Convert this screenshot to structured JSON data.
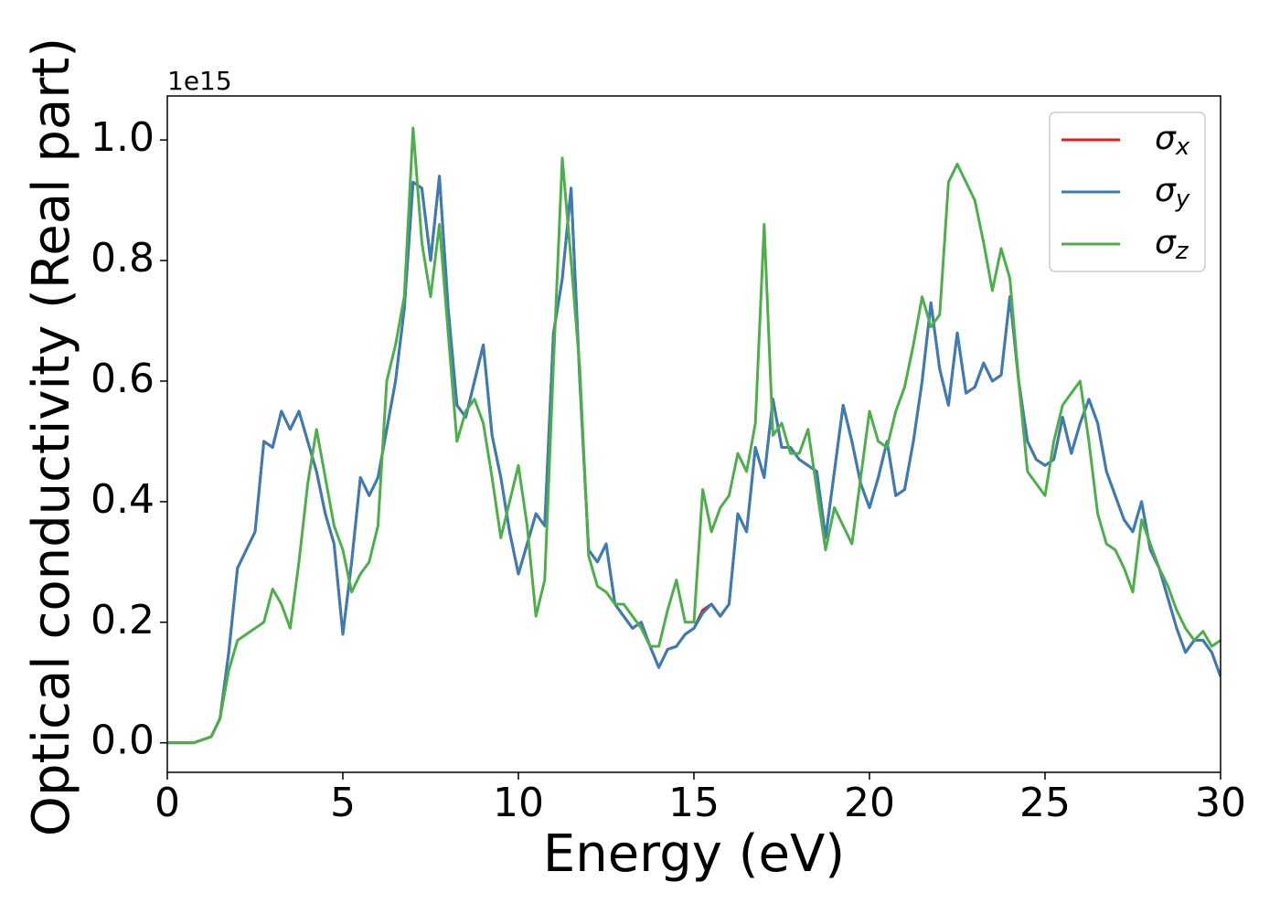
{
  "chart_data": {
    "type": "line",
    "offset_text": "1e15",
    "xlabel": "Energy (eV)",
    "ylabel": "Optical conductivity (Real part)",
    "xlim": [
      0,
      30
    ],
    "xticks": [
      0,
      5,
      10,
      15,
      20,
      25,
      30
    ],
    "ylim": [
      -0.049,
      1.073
    ],
    "yticks": [
      {
        "value": 0,
        "label": "0.0"
      },
      0.2,
      0.4,
      0.6,
      0.8,
      {
        "value": 1,
        "label": "1.0"
      }
    ],
    "legend": "upper right",
    "x": [
      0,
      0.25,
      0.5,
      0.75,
      1,
      1.25,
      1.5,
      1.75,
      2,
      2.25,
      2.5,
      2.75,
      3,
      3.25,
      3.5,
      3.75,
      4,
      4.25,
      4.5,
      4.75,
      5,
      5.25,
      5.5,
      5.75,
      6,
      6.25,
      6.5,
      6.75,
      7,
      7.25,
      7.5,
      7.75,
      8,
      8.25,
      8.5,
      8.75,
      9,
      9.25,
      9.5,
      9.75,
      10,
      10.25,
      10.5,
      10.75,
      11,
      11.25,
      11.5,
      11.75,
      12,
      12.25,
      12.5,
      12.75,
      13,
      13.25,
      13.5,
      13.75,
      14,
      14.25,
      14.5,
      14.75,
      15,
      15.25,
      15.5,
      15.75,
      16,
      16.25,
      16.5,
      16.75,
      17,
      17.25,
      17.5,
      17.75,
      18,
      18.25,
      18.5,
      18.75,
      19,
      19.25,
      19.5,
      19.75,
      20,
      20.25,
      20.5,
      20.75,
      21,
      21.25,
      21.5,
      21.75,
      22,
      22.25,
      22.5,
      22.75,
      23,
      23.25,
      23.5,
      23.75,
      24,
      24.25,
      24.5,
      24.75,
      25,
      25.25,
      25.5,
      25.75,
      26,
      26.25,
      26.5,
      26.75,
      27,
      27.25,
      27.5,
      27.75,
      28,
      28.25,
      28.5,
      28.75,
      29,
      29.25,
      29.5,
      29.75,
      30
    ],
    "series": [
      {
        "name": "σx",
        "color": "#e41a1c",
        "values": [
          0,
          0,
          0,
          0,
          0.005,
          0.01,
          0.04,
          0.15,
          0.29,
          0.32,
          0.35,
          0.5,
          0.49,
          0.55,
          0.52,
          0.55,
          0.5,
          0.45,
          0.38,
          0.33,
          0.18,
          0.3,
          0.44,
          0.41,
          0.44,
          0.52,
          0.6,
          0.72,
          0.93,
          0.92,
          0.8,
          0.94,
          0.72,
          0.56,
          0.54,
          0.6,
          0.66,
          0.51,
          0.44,
          0.35,
          0.28,
          0.33,
          0.38,
          0.36,
          0.68,
          0.77,
          0.92,
          0.6,
          0.32,
          0.3,
          0.33,
          0.23,
          0.21,
          0.19,
          0.2,
          0.16,
          0.125,
          0.155,
          0.16,
          0.18,
          0.19,
          0.22,
          0.23,
          0.21,
          0.23,
          0.38,
          0.35,
          0.49,
          0.44,
          0.57,
          0.49,
          0.49,
          0.47,
          0.46,
          0.45,
          0.34,
          0.45,
          0.56,
          0.5,
          0.43,
          0.39,
          0.44,
          0.5,
          0.41,
          0.42,
          0.5,
          0.6,
          0.73,
          0.62,
          0.56,
          0.68,
          0.58,
          0.59,
          0.63,
          0.6,
          0.61,
          0.74,
          0.6,
          0.5,
          0.47,
          0.46,
          0.47,
          0.54,
          0.48,
          0.53,
          0.57,
          0.53,
          0.45,
          0.41,
          0.37,
          0.35,
          0.4,
          0.32,
          0.29,
          0.24,
          0.19,
          0.15,
          0.17,
          0.17,
          0.15,
          0.11
        ]
      },
      {
        "name": "σy",
        "color": "#377eb8",
        "values": [
          0,
          0,
          0,
          0,
          0.005,
          0.01,
          0.04,
          0.15,
          0.29,
          0.32,
          0.35,
          0.5,
          0.49,
          0.55,
          0.52,
          0.55,
          0.5,
          0.45,
          0.38,
          0.33,
          0.18,
          0.3,
          0.44,
          0.41,
          0.44,
          0.52,
          0.6,
          0.72,
          0.93,
          0.92,
          0.8,
          0.94,
          0.72,
          0.56,
          0.54,
          0.6,
          0.66,
          0.51,
          0.44,
          0.35,
          0.28,
          0.33,
          0.38,
          0.36,
          0.68,
          0.77,
          0.92,
          0.6,
          0.32,
          0.3,
          0.33,
          0.23,
          0.21,
          0.19,
          0.2,
          0.16,
          0.125,
          0.155,
          0.16,
          0.18,
          0.19,
          0.215,
          0.23,
          0.21,
          0.23,
          0.38,
          0.35,
          0.49,
          0.44,
          0.57,
          0.49,
          0.49,
          0.47,
          0.46,
          0.45,
          0.34,
          0.45,
          0.56,
          0.5,
          0.43,
          0.39,
          0.44,
          0.5,
          0.41,
          0.42,
          0.5,
          0.6,
          0.73,
          0.62,
          0.56,
          0.68,
          0.58,
          0.59,
          0.63,
          0.6,
          0.61,
          0.74,
          0.6,
          0.5,
          0.47,
          0.46,
          0.47,
          0.54,
          0.48,
          0.53,
          0.57,
          0.53,
          0.45,
          0.41,
          0.37,
          0.35,
          0.4,
          0.32,
          0.29,
          0.24,
          0.19,
          0.15,
          0.17,
          0.17,
          0.15,
          0.11
        ]
      },
      {
        "name": "σz",
        "color": "#4daf4a",
        "values": [
          0,
          0,
          0,
          0,
          0.005,
          0.01,
          0.04,
          0.12,
          0.17,
          0.18,
          0.19,
          0.2,
          0.255,
          0.23,
          0.19,
          0.3,
          0.43,
          0.52,
          0.44,
          0.36,
          0.32,
          0.25,
          0.28,
          0.3,
          0.36,
          0.6,
          0.66,
          0.74,
          1.02,
          0.83,
          0.74,
          0.86,
          0.68,
          0.5,
          0.55,
          0.57,
          0.53,
          0.44,
          0.34,
          0.4,
          0.46,
          0.36,
          0.21,
          0.27,
          0.63,
          0.97,
          0.8,
          0.62,
          0.31,
          0.26,
          0.25,
          0.23,
          0.23,
          0.21,
          0.19,
          0.16,
          0.16,
          0.22,
          0.27,
          0.2,
          0.2,
          0.42,
          0.35,
          0.39,
          0.41,
          0.48,
          0.45,
          0.53,
          0.86,
          0.51,
          0.53,
          0.48,
          0.48,
          0.52,
          0.42,
          0.32,
          0.39,
          0.36,
          0.33,
          0.44,
          0.55,
          0.5,
          0.49,
          0.55,
          0.59,
          0.66,
          0.74,
          0.69,
          0.71,
          0.93,
          0.96,
          0.93,
          0.9,
          0.83,
          0.75,
          0.82,
          0.77,
          0.6,
          0.45,
          0.43,
          0.41,
          0.5,
          0.56,
          0.58,
          0.6,
          0.5,
          0.38,
          0.33,
          0.32,
          0.29,
          0.25,
          0.37,
          0.33,
          0.29,
          0.26,
          0.22,
          0.19,
          0.17,
          0.185,
          0.16,
          0.17
        ]
      }
    ]
  }
}
